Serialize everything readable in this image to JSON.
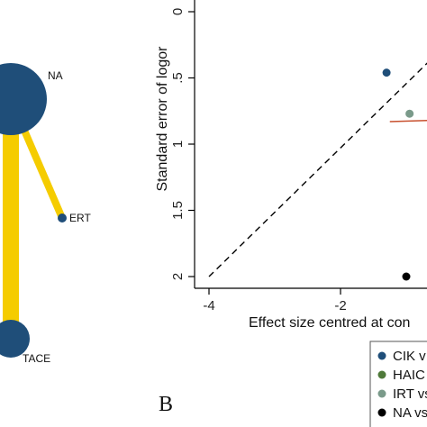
{
  "network": {
    "nodes": [
      {
        "id": "NA",
        "label": "NA",
        "color": "#1f4e79"
      },
      {
        "id": "ERT",
        "label": "ERT",
        "color": "#1f4e79"
      },
      {
        "id": "TACE",
        "label": "TACE",
        "color": "#1f4e79"
      }
    ],
    "edges": [
      {
        "from": "NA",
        "to": "TACE",
        "color": "#f5cc00"
      },
      {
        "from": "NA",
        "to": "ERT",
        "color": "#f5cc00"
      }
    ]
  },
  "panel_letter": "B",
  "chart_data": {
    "type": "scatter",
    "xlabel": "Effect size centred at con",
    "ylabel": "Standard error of logor",
    "x_ticks": [
      "-4",
      "-2"
    ],
    "x_tick_values": [
      -4,
      -2
    ],
    "y_ticks": [
      "0",
      ".5",
      "1",
      "1.5",
      "2"
    ],
    "y_tick_values": [
      0,
      0.5,
      1,
      1.5,
      2
    ],
    "xlim": [
      -4.15,
      -0.6
    ],
    "ylim": [
      0,
      2.05
    ],
    "y_inverted": true,
    "reference_line": {
      "style": "dashed",
      "x": [
        -4,
        -0.5
      ],
      "y": [
        2.0,
        0.3
      ]
    },
    "fit_line": {
      "color": "#c8502e",
      "x": [
        -1.25,
        -0.6
      ],
      "y": [
        0.83,
        0.82
      ]
    },
    "points": [
      {
        "group": "CIK",
        "x": -1.3,
        "y": 0.46,
        "color": "#1f4e79"
      },
      {
        "group": "IRT",
        "x": -0.95,
        "y": 0.77,
        "color": "#7a9a8a"
      },
      {
        "group": "NA",
        "x": -1.0,
        "y": 2.0,
        "color": "#000000"
      }
    ],
    "legend": {
      "position": "bottom-right",
      "entries": [
        {
          "label": "CIK v",
          "color": "#1f4e79"
        },
        {
          "label": "HAIC",
          "color": "#4f7a3a"
        },
        {
          "label": "IRT vs",
          "color": "#7a9a8a"
        },
        {
          "label": "NA vs",
          "color": "#000000"
        }
      ]
    }
  }
}
